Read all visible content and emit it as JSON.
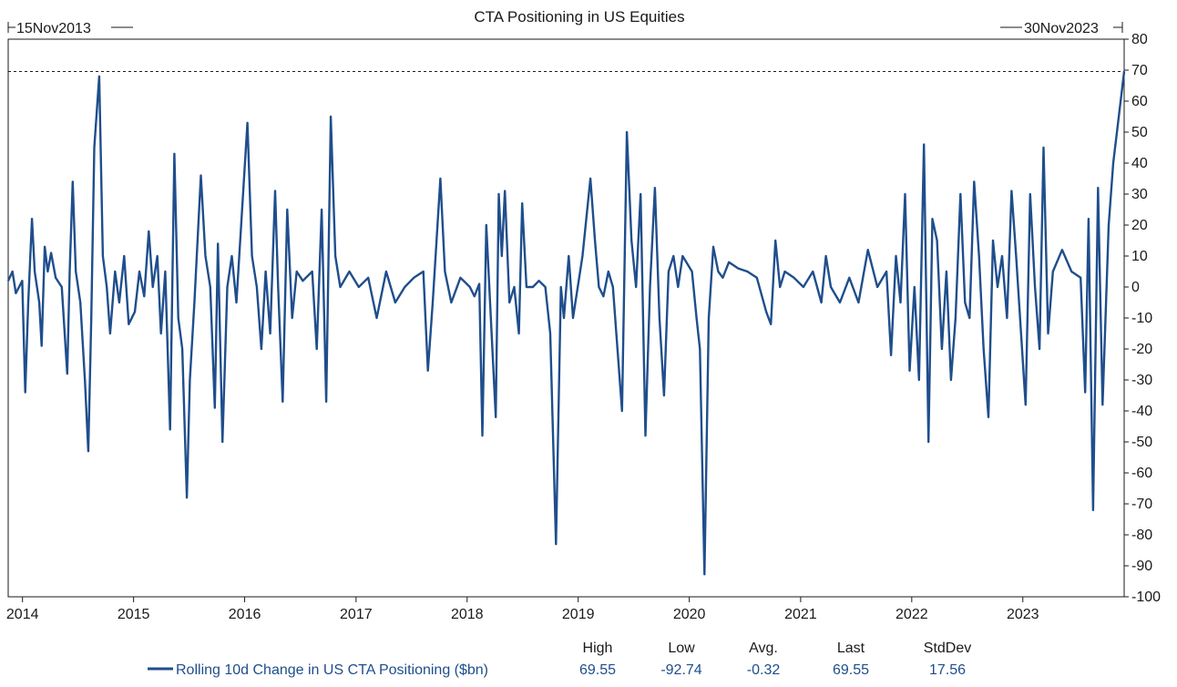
{
  "chart_data": {
    "type": "line",
    "title": "CTA Positioning in US Equities",
    "start_label": "15Nov2013",
    "end_label": "30Nov2023",
    "x_range": [
      "2013-11-15",
      "2023-11-30"
    ],
    "x_ticks": [
      "2014",
      "2015",
      "2016",
      "2017",
      "2018",
      "2019",
      "2020",
      "2021",
      "2022",
      "2023"
    ],
    "ylim": [
      -100,
      80
    ],
    "y_ticks": [
      80,
      70,
      60,
      50,
      40,
      30,
      20,
      10,
      0,
      -10,
      -20,
      -30,
      -40,
      -50,
      -60,
      -70,
      -80,
      -90,
      -100
    ],
    "reference_line": 69.55,
    "grid": false,
    "color": "#1f4e8c",
    "series": [
      {
        "name": "Rolling 10d Change in US CTA Positioning ($bn)",
        "points": [
          [
            "2013-11-15",
            2
          ],
          [
            "2013-11-29",
            5
          ],
          [
            "2013-12-10",
            -2
          ],
          [
            "2013-12-31",
            2
          ],
          [
            "2014-01-10",
            -34
          ],
          [
            "2014-01-20",
            -5
          ],
          [
            "2014-02-01",
            22
          ],
          [
            "2014-02-10",
            5
          ],
          [
            "2014-02-25",
            -5
          ],
          [
            "2014-03-05",
            -19
          ],
          [
            "2014-03-15",
            13
          ],
          [
            "2014-03-25",
            5
          ],
          [
            "2014-04-05",
            11
          ],
          [
            "2014-04-20",
            3
          ],
          [
            "2014-05-10",
            0
          ],
          [
            "2014-05-28",
            -28
          ],
          [
            "2014-06-05",
            5
          ],
          [
            "2014-06-15",
            34
          ],
          [
            "2014-06-25",
            5
          ],
          [
            "2014-07-10",
            -5
          ],
          [
            "2014-07-25",
            -30
          ],
          [
            "2014-08-05",
            -53
          ],
          [
            "2014-08-15",
            -10
          ],
          [
            "2014-08-25",
            45
          ],
          [
            "2014-09-10",
            68
          ],
          [
            "2014-09-22",
            10
          ],
          [
            "2014-10-05",
            0
          ],
          [
            "2014-10-16",
            -15
          ],
          [
            "2014-11-01",
            5
          ],
          [
            "2014-11-15",
            -5
          ],
          [
            "2014-12-01",
            10
          ],
          [
            "2014-12-16",
            -12
          ],
          [
            "2015-01-05",
            -8
          ],
          [
            "2015-01-20",
            5
          ],
          [
            "2015-02-05",
            -3
          ],
          [
            "2015-02-20",
            18
          ],
          [
            "2015-03-05",
            0
          ],
          [
            "2015-03-20",
            10
          ],
          [
            "2015-04-01",
            -15
          ],
          [
            "2015-04-15",
            5
          ],
          [
            "2015-05-01",
            -46
          ],
          [
            "2015-05-15",
            43
          ],
          [
            "2015-05-28",
            -10
          ],
          [
            "2015-06-10",
            -20
          ],
          [
            "2015-06-25",
            -68
          ],
          [
            "2015-07-05",
            -30
          ],
          [
            "2015-07-20",
            -5
          ],
          [
            "2015-08-10",
            36
          ],
          [
            "2015-08-25",
            10
          ],
          [
            "2015-09-10",
            0
          ],
          [
            "2015-09-25",
            -39
          ],
          [
            "2015-10-05",
            14
          ],
          [
            "2015-10-20",
            -50
          ],
          [
            "2015-11-05",
            0
          ],
          [
            "2015-11-20",
            10
          ],
          [
            "2015-12-05",
            -5
          ],
          [
            "2016-01-10",
            53
          ],
          [
            "2016-01-25",
            10
          ],
          [
            "2016-02-10",
            0
          ],
          [
            "2016-02-25",
            -20
          ],
          [
            "2016-03-10",
            5
          ],
          [
            "2016-03-25",
            -15
          ],
          [
            "2016-04-10",
            31
          ],
          [
            "2016-04-20",
            0
          ],
          [
            "2016-05-05",
            -37
          ],
          [
            "2016-05-20",
            25
          ],
          [
            "2016-06-05",
            -10
          ],
          [
            "2016-06-20",
            5
          ],
          [
            "2016-07-10",
            2
          ],
          [
            "2016-08-10",
            5
          ],
          [
            "2016-08-25",
            -20
          ],
          [
            "2016-09-10",
            25
          ],
          [
            "2016-09-25",
            -37
          ],
          [
            "2016-10-10",
            55
          ],
          [
            "2016-10-25",
            10
          ],
          [
            "2016-11-10",
            0
          ],
          [
            "2016-12-10",
            5
          ],
          [
            "2017-01-10",
            0
          ],
          [
            "2017-02-10",
            3
          ],
          [
            "2017-03-10",
            -10
          ],
          [
            "2017-04-10",
            5
          ],
          [
            "2017-05-10",
            -5
          ],
          [
            "2017-06-10",
            0
          ],
          [
            "2017-07-10",
            3
          ],
          [
            "2017-08-10",
            5
          ],
          [
            "2017-08-25",
            -27
          ],
          [
            "2017-09-10",
            -5
          ],
          [
            "2017-10-05",
            35
          ],
          [
            "2017-10-20",
            5
          ],
          [
            "2017-11-10",
            -5
          ],
          [
            "2017-12-10",
            3
          ],
          [
            "2018-01-10",
            0
          ],
          [
            "2018-01-25",
            -3
          ],
          [
            "2018-02-10",
            1
          ],
          [
            "2018-02-20",
            -48
          ],
          [
            "2018-03-05",
            20
          ],
          [
            "2018-03-20",
            -10
          ],
          [
            "2018-04-05",
            -42
          ],
          [
            "2018-04-15",
            30
          ],
          [
            "2018-04-25",
            10
          ],
          [
            "2018-05-05",
            31
          ],
          [
            "2018-05-20",
            -5
          ],
          [
            "2018-06-05",
            0
          ],
          [
            "2018-06-20",
            -15
          ],
          [
            "2018-07-01",
            27
          ],
          [
            "2018-07-15",
            0
          ],
          [
            "2018-08-05",
            0
          ],
          [
            "2018-08-25",
            2
          ],
          [
            "2018-09-15",
            0
          ],
          [
            "2018-10-01",
            -15
          ],
          [
            "2018-10-20",
            -83
          ],
          [
            "2018-11-05",
            0
          ],
          [
            "2018-11-15",
            -10
          ],
          [
            "2018-12-01",
            10
          ],
          [
            "2018-12-15",
            -10
          ],
          [
            "2019-01-15",
            10
          ],
          [
            "2019-02-10",
            35
          ],
          [
            "2019-02-25",
            15
          ],
          [
            "2019-03-10",
            0
          ],
          [
            "2019-03-25",
            -3
          ],
          [
            "2019-04-10",
            5
          ],
          [
            "2019-04-25",
            0
          ],
          [
            "2019-05-10",
            -20
          ],
          [
            "2019-05-25",
            -40
          ],
          [
            "2019-06-10",
            50
          ],
          [
            "2019-06-25",
            15
          ],
          [
            "2019-07-10",
            0
          ],
          [
            "2019-07-25",
            30
          ],
          [
            "2019-08-10",
            -48
          ],
          [
            "2019-08-25",
            0
          ],
          [
            "2019-09-10",
            32
          ],
          [
            "2019-09-25",
            -10
          ],
          [
            "2019-10-10",
            -35
          ],
          [
            "2019-10-25",
            5
          ],
          [
            "2019-11-10",
            10
          ],
          [
            "2019-11-25",
            0
          ],
          [
            "2019-12-10",
            10
          ],
          [
            "2020-01-10",
            5
          ],
          [
            "2020-01-25",
            -10
          ],
          [
            "2020-02-05",
            -20
          ],
          [
            "2020-02-20",
            -92.74
          ],
          [
            "2020-03-05",
            -10
          ],
          [
            "2020-03-20",
            13
          ],
          [
            "2020-04-05",
            5
          ],
          [
            "2020-04-20",
            3
          ],
          [
            "2020-05-10",
            8
          ],
          [
            "2020-06-10",
            6
          ],
          [
            "2020-07-10",
            5
          ],
          [
            "2020-08-10",
            3
          ],
          [
            "2020-09-10",
            -8
          ],
          [
            "2020-09-25",
            -12
          ],
          [
            "2020-10-10",
            15
          ],
          [
            "2020-10-25",
            0
          ],
          [
            "2020-11-10",
            5
          ],
          [
            "2020-12-10",
            3
          ],
          [
            "2021-01-10",
            0
          ],
          [
            "2021-02-10",
            5
          ],
          [
            "2021-03-10",
            -5
          ],
          [
            "2021-03-25",
            10
          ],
          [
            "2021-04-10",
            0
          ],
          [
            "2021-05-10",
            -5
          ],
          [
            "2021-06-10",
            3
          ],
          [
            "2021-07-10",
            -5
          ],
          [
            "2021-08-10",
            12
          ],
          [
            "2021-09-10",
            0
          ],
          [
            "2021-10-10",
            5
          ],
          [
            "2021-10-25",
            -22
          ],
          [
            "2021-11-10",
            10
          ],
          [
            "2021-11-25",
            -5
          ],
          [
            "2021-12-10",
            30
          ],
          [
            "2021-12-25",
            -27
          ],
          [
            "2022-01-10",
            0
          ],
          [
            "2022-01-25",
            -30
          ],
          [
            "2022-02-10",
            46
          ],
          [
            "2022-02-25",
            -50
          ],
          [
            "2022-03-10",
            22
          ],
          [
            "2022-03-25",
            15
          ],
          [
            "2022-04-10",
            -20
          ],
          [
            "2022-04-25",
            5
          ],
          [
            "2022-05-10",
            -30
          ],
          [
            "2022-05-25",
            -10
          ],
          [
            "2022-06-10",
            30
          ],
          [
            "2022-06-25",
            -5
          ],
          [
            "2022-07-10",
            -10
          ],
          [
            "2022-07-25",
            34
          ],
          [
            "2022-08-10",
            10
          ],
          [
            "2022-08-25",
            -20
          ],
          [
            "2022-09-10",
            -42
          ],
          [
            "2022-09-25",
            15
          ],
          [
            "2022-10-10",
            0
          ],
          [
            "2022-10-25",
            10
          ],
          [
            "2022-11-10",
            -10
          ],
          [
            "2022-11-25",
            31
          ],
          [
            "2022-12-10",
            10
          ],
          [
            "2023-01-10",
            -38
          ],
          [
            "2023-01-25",
            30
          ],
          [
            "2023-02-10",
            0
          ],
          [
            "2023-02-25",
            -20
          ],
          [
            "2023-03-10",
            45
          ],
          [
            "2023-03-25",
            -15
          ],
          [
            "2023-04-10",
            5
          ],
          [
            "2023-05-10",
            12
          ],
          [
            "2023-06-10",
            5
          ],
          [
            "2023-07-10",
            3
          ],
          [
            "2023-07-25",
            -34
          ],
          [
            "2023-08-05",
            22
          ],
          [
            "2023-08-20",
            -72
          ],
          [
            "2023-09-05",
            32
          ],
          [
            "2023-09-20",
            -38
          ],
          [
            "2023-10-10",
            20
          ],
          [
            "2023-10-25",
            40
          ],
          [
            "2023-11-30",
            69.55
          ]
        ]
      }
    ],
    "legend": {
      "label": "Rolling 10d Change in US CTA Positioning ($bn)",
      "placement": "bottom"
    },
    "stats": {
      "headers": [
        "High",
        "Low",
        "Avg.",
        "Last",
        "StdDev"
      ],
      "values": [
        "69.55",
        "-92.74",
        "-0.32",
        "69.55",
        "17.56"
      ]
    }
  }
}
